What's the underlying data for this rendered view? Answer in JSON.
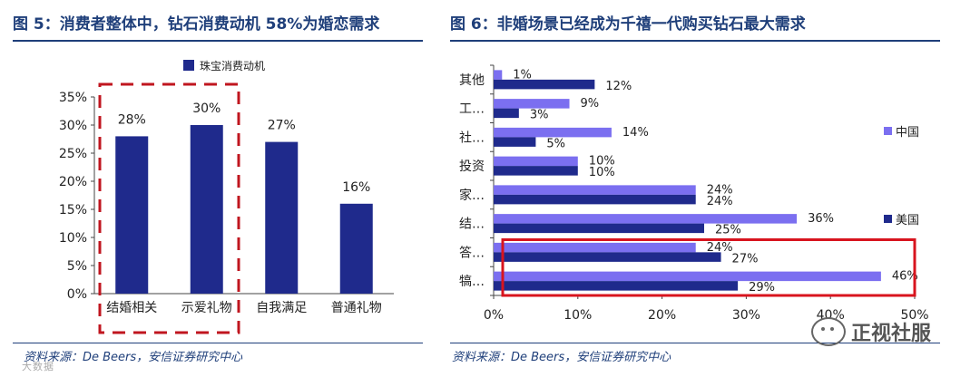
{
  "left": {
    "title": "图 5：消费者整体中，钻石消费动机 58%为婚恋需求",
    "source": "资料来源：De Beers，安信证券研究中心",
    "watermark": "大数据",
    "colors": {
      "bar": "#1f2a8c",
      "highlight": "#c0161f",
      "title": "#1f3f7a"
    }
  },
  "right": {
    "title": "图 6：非婚场景已经成为千禧一代购买钻石最大需求",
    "source": "资料来源：De Beers，安信证券研究中心",
    "watermark_text": "正视社服",
    "watermark_icon": "wechat-icon",
    "colors": {
      "china": "#7b6ff0",
      "usa": "#1f2a8c",
      "highlight": "#d8141e"
    }
  },
  "chart_data": [
    {
      "type": "bar",
      "title": "",
      "categories": [
        "结婚相关",
        "示爱礼物",
        "自我满足",
        "普通礼物"
      ],
      "series": [
        {
          "name": "珠宝消费动机",
          "values": [
            28,
            30,
            27,
            16
          ]
        }
      ],
      "data_labels": [
        "28%",
        "30%",
        "27%",
        "16%"
      ],
      "yticks": [
        "0%",
        "5%",
        "10%",
        "15%",
        "20%",
        "25%",
        "30%",
        "35%"
      ],
      "ylim": [
        0,
        35
      ],
      "legend_position": "top",
      "highlight": "dashed box around 结婚相关 and 示爱礼物"
    },
    {
      "type": "bar",
      "orientation": "horizontal",
      "title": "",
      "categories": [
        "其他",
        "工…",
        "社…",
        "投资",
        "家…",
        "结…",
        "答…",
        "犒…"
      ],
      "series": [
        {
          "name": "中国",
          "values": [
            1,
            9,
            14,
            10,
            24,
            36,
            24,
            46
          ]
        },
        {
          "name": "美国",
          "values": [
            12,
            3,
            5,
            10,
            24,
            25,
            27,
            29
          ]
        }
      ],
      "xticks": [
        "0%",
        "10%",
        "20%",
        "30%",
        "40%",
        "50%"
      ],
      "xlim": [
        0,
        50
      ],
      "legend_position": "right",
      "highlight": "solid box around 答… and 犒…"
    }
  ]
}
